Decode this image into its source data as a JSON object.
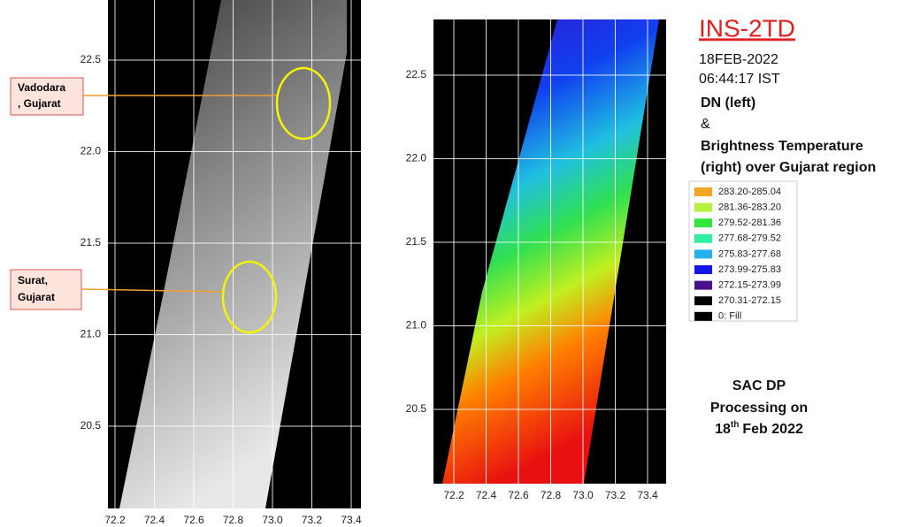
{
  "left_panel": {
    "xticks": [
      "72.2",
      "72.4",
      "72.6",
      "72.8",
      "73.0",
      "73.2",
      "73.4"
    ],
    "yticks": [
      "22.5",
      "22.0",
      "21.5",
      "21.0",
      "20.5"
    ],
    "annotations": [
      {
        "lines": [
          "Vadodara",
          ", Gujarat"
        ]
      },
      {
        "lines": [
          "Surat,",
          "Gujarat"
        ]
      }
    ]
  },
  "right_panel": {
    "xticks": [
      "72.2",
      "72.4",
      "72.6",
      "72.8",
      "73.0",
      "73.2",
      "73.4"
    ],
    "yticks": [
      "22.5",
      "22.0",
      "21.5",
      "21.0",
      "20.5"
    ]
  },
  "header": {
    "title": "INS-2TD",
    "date": "18FEB-2022",
    "time": "06:44:17 IST",
    "caption": [
      "DN (left)",
      "&",
      "Brightness Temperature",
      "(right) over Gujarat region"
    ]
  },
  "legend": [
    {
      "label": "283.20-285.04",
      "color": "#f5a623"
    },
    {
      "label": "281.36-283.20",
      "color": "#b4f23c"
    },
    {
      "label": "279.52-281.36",
      "color": "#33e63c"
    },
    {
      "label": "277.68-279.52",
      "color": "#2ef0a0"
    },
    {
      "label": "275.83-277.68",
      "color": "#25b0f0"
    },
    {
      "label": "273.99-275.83",
      "color": "#1414f0"
    },
    {
      "label": "272.15-273.99",
      "color": "#4a0f8a"
    },
    {
      "label": "270.31-272.15",
      "color": "#000000"
    },
    {
      "label": "0: Fill",
      "color": "#000000"
    }
  ],
  "footer": {
    "lines": [
      "SAC DP",
      "Processing on"
    ],
    "date": {
      "day": "18",
      "suffix": "th",
      "rest": "Feb 2022"
    }
  }
}
